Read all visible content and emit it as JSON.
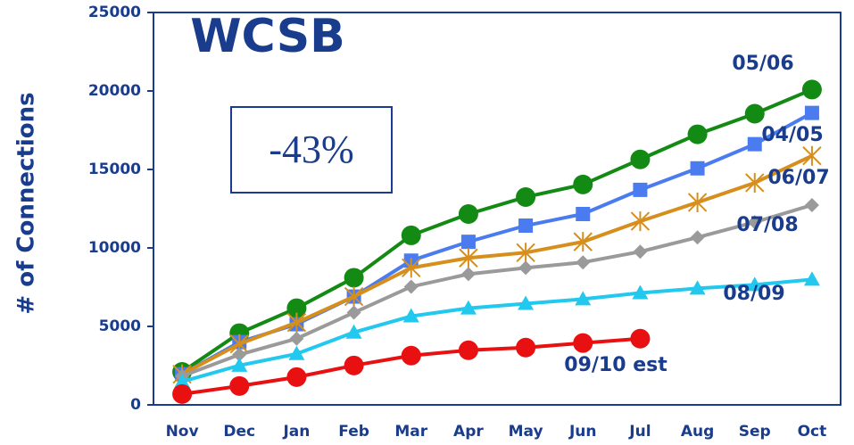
{
  "chart_data": {
    "type": "line",
    "title": "WCSB",
    "annotation": "-43%",
    "y_label": "# of Connections",
    "categories": [
      "Nov",
      "Dec",
      "Jan",
      "Feb",
      "Mar",
      "Apr",
      "May",
      "Jun",
      "Jul",
      "Aug",
      "Sep",
      "Oct"
    ],
    "ylim": [
      0,
      25000
    ],
    "yticks": [
      0,
      5000,
      10000,
      15000,
      20000,
      25000
    ],
    "series": [
      {
        "name": "05/06",
        "color": "#138a13",
        "marker": "circle",
        "values": [
          2100,
          4570,
          6160,
          8100,
          10800,
          12160,
          13240,
          14040,
          15640,
          17240,
          18550,
          20090
        ]
      },
      {
        "name": "04/05",
        "color": "#4a7cf0",
        "marker": "square",
        "values": [
          1950,
          4000,
          5140,
          6900,
          9190,
          10390,
          11420,
          12160,
          13700,
          15070,
          16610,
          18600
        ]
      },
      {
        "name": "06/07",
        "color": "#d68f1c",
        "marker": "star",
        "values": [
          1950,
          3880,
          5250,
          6900,
          8730,
          9360,
          9700,
          10390,
          11700,
          12900,
          14150,
          15870
        ]
      },
      {
        "name": "07/08",
        "color": "#9a9a9a",
        "marker": "diamond",
        "values": [
          1830,
          3200,
          4220,
          5880,
          7530,
          8330,
          8730,
          9080,
          9760,
          10670,
          11640,
          12730
        ]
      },
      {
        "name": "08/09",
        "color": "#22c8ee",
        "marker": "triangle",
        "values": [
          1480,
          2510,
          3250,
          4620,
          5650,
          6160,
          6450,
          6740,
          7130,
          7420,
          7650,
          7990
        ]
      },
      {
        "name": "09/10 est",
        "color": "#e81010",
        "marker": "circle",
        "values": [
          690,
          1200,
          1770,
          2510,
          3140,
          3480,
          3650,
          3940,
          4220,
          null,
          null,
          null
        ]
      }
    ]
  }
}
